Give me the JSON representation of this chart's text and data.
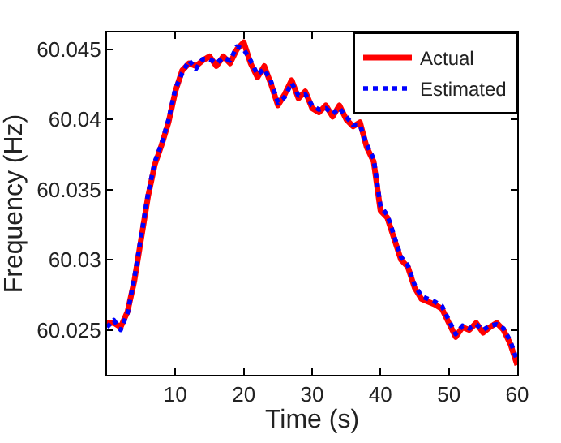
{
  "chart_data": {
    "type": "line",
    "xlabel": "Time (s)",
    "ylabel": "Frequency (Hz)",
    "x": [
      0,
      1,
      2,
      3,
      4,
      5,
      6,
      7,
      8,
      9,
      10,
      11,
      12,
      13,
      14,
      15,
      16,
      17,
      18,
      19,
      20,
      21,
      22,
      23,
      24,
      25,
      26,
      27,
      28,
      29,
      30,
      31,
      32,
      33,
      34,
      35,
      36,
      37,
      38,
      39,
      40,
      41,
      42,
      43,
      44,
      45,
      46,
      47,
      48,
      49,
      50,
      51,
      52,
      53,
      54,
      55,
      56,
      57,
      58,
      59,
      60
    ],
    "series": [
      {
        "name": "Actual",
        "color": "#ff0000",
        "line_style": "solid",
        "values": [
          60.0255,
          60.0255,
          60.0252,
          60.0263,
          60.0285,
          60.0315,
          60.0345,
          60.0368,
          60.0382,
          60.0398,
          60.042,
          60.0435,
          60.044,
          60.0438,
          60.0442,
          60.0445,
          60.0438,
          60.0445,
          60.044,
          60.045,
          60.0455,
          60.044,
          60.043,
          60.0438,
          60.0425,
          60.041,
          60.0418,
          60.0428,
          60.0415,
          60.042,
          60.0408,
          60.0405,
          60.041,
          60.0402,
          60.041,
          60.04,
          60.0395,
          60.0398,
          60.038,
          60.037,
          60.0335,
          60.033,
          60.0315,
          60.03,
          60.0295,
          60.028,
          60.0272,
          60.027,
          60.0268,
          60.0265,
          60.0255,
          60.0245,
          60.0252,
          60.025,
          60.0255,
          60.0248,
          60.0252,
          60.0255,
          60.025,
          60.024,
          60.0225
        ]
      },
      {
        "name": "Estimated",
        "color": "#0000ff",
        "line_style": "dotted",
        "values": [
          60.0252,
          60.0257,
          60.025,
          60.0262,
          60.0287,
          60.0317,
          60.0347,
          60.037,
          60.0383,
          60.04,
          60.0422,
          60.0433,
          60.0442,
          60.0436,
          60.0443,
          60.0443,
          60.044,
          60.0444,
          60.0442,
          60.0452,
          60.045,
          60.0442,
          60.0432,
          60.0436,
          60.0427,
          60.0412,
          60.0416,
          60.0426,
          60.0417,
          60.0418,
          60.041,
          60.0407,
          60.0408,
          60.0404,
          60.0408,
          60.0402,
          60.0396,
          60.0396,
          60.0382,
          60.0372,
          60.0338,
          60.0332,
          60.0317,
          60.0302,
          60.0296,
          60.0282,
          60.0274,
          60.0272,
          60.027,
          60.0267,
          60.0257,
          60.0247,
          60.0253,
          60.0251,
          60.0254,
          60.025,
          60.0253,
          60.0254,
          60.0251,
          60.0242,
          60.0228
        ]
      }
    ],
    "xlim": [
      0,
      60
    ],
    "xticks": [
      10,
      20,
      30,
      40,
      50,
      60
    ],
    "ylim": [
      60.0218,
      60.0462
    ],
    "yticks": [
      60.025,
      60.03,
      60.035,
      60.04,
      60.045
    ],
    "grid": false,
    "legend": "top right"
  }
}
